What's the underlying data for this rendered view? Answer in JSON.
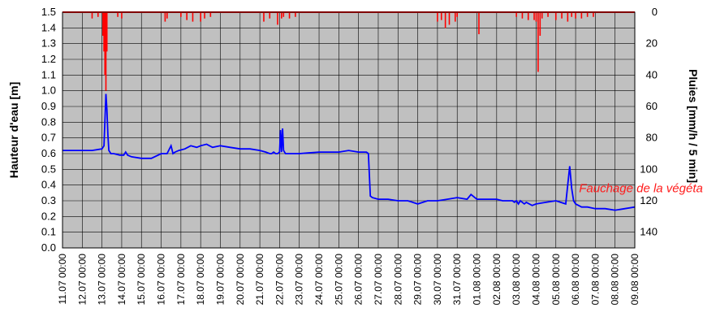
{
  "chart_data": {
    "type": "line",
    "title": "",
    "ylabel": "Hauteur d'eau [m]",
    "y2label": "Pluies [mm/h / 5 min]",
    "ylim": [
      0,
      1.5
    ],
    "y2lim": [
      0,
      150
    ],
    "y2_inverted": true,
    "y_ticks": [
      "0.0",
      "0.1",
      "0.2",
      "0.3",
      "0.4",
      "0.5",
      "0.6",
      "0.7",
      "0.8",
      "0.9",
      "1.0",
      "1.1",
      "1.2",
      "1.3",
      "1.4",
      "1.5"
    ],
    "y2_ticks": [
      "0",
      "20",
      "40",
      "60",
      "80",
      "100",
      "120",
      "140"
    ],
    "x_ticks": [
      "11.07 00:00",
      "12.07 00:00",
      "13.07 00:00",
      "14.07 00:00",
      "15.07 00:00",
      "16.07 00:00",
      "17.07 00:00",
      "18.07 00:00",
      "19.07 00:00",
      "20.07 00:00",
      "21.07 00:00",
      "22.07 00:00",
      "23.07 00:00",
      "24.07 00:00",
      "25.07 00:00",
      "26.07 00:00",
      "27.07 00:00",
      "28.07 00:00",
      "29.07 00:00",
      "30.07 00:00",
      "31.07 00:00",
      "01.08 00:00",
      "02.08 00:00",
      "03.08 00:00",
      "04.08 00:00",
      "05.08 00:00",
      "06.08 00:00",
      "07.08 00:00",
      "08.08 00:00",
      "09.08 00:00"
    ],
    "grid": true,
    "background": "#c0c0c0",
    "annotation": {
      "text": "Fauchage de la végétation",
      "x": 26.5,
      "y": 0.38
    },
    "colors": {
      "water": "#0000ff",
      "rain": "#ff0000"
    },
    "series": [
      {
        "axis": "left",
        "x": [
          0,
          1.5,
          2.0,
          2.1,
          2.2,
          2.25,
          2.3,
          2.35,
          2.45,
          2.6,
          2.9,
          3.1,
          3.2,
          3.3,
          3.5,
          4.0,
          4.5,
          5.0,
          5.3,
          5.5,
          5.6,
          5.7,
          5.9,
          6.2,
          6.5,
          6.8,
          7.0,
          7.3,
          7.6,
          8.0,
          8.5,
          9.0,
          9.5,
          10.0,
          10.3,
          10.5,
          10.6,
          10.7,
          10.8,
          10.9,
          11.0,
          11.05,
          11.1,
          11.15,
          11.2,
          11.3,
          11.5,
          12.0,
          13.0,
          14.0,
          14.5,
          15.0,
          15.4,
          15.5,
          15.6,
          15.7,
          16.0,
          16.5,
          17.0,
          17.5,
          18.0,
          18.5,
          19.0,
          19.5,
          20.0,
          20.5,
          20.7,
          21.0,
          21.5,
          22.0,
          22.3,
          22.5,
          22.8,
          22.9,
          23.0,
          23.1,
          23.2,
          23.3,
          23.4,
          23.5,
          23.8,
          24.0,
          24.5,
          25.0,
          25.5,
          25.7,
          25.8,
          25.9,
          26.0,
          26.3,
          26.6,
          27.0,
          27.5,
          28.0,
          28.5,
          29.0
        ],
        "values": [
          0.62,
          0.62,
          0.63,
          0.65,
          0.98,
          0.88,
          0.72,
          0.62,
          0.6,
          0.6,
          0.59,
          0.59,
          0.61,
          0.59,
          0.58,
          0.57,
          0.57,
          0.6,
          0.6,
          0.65,
          0.6,
          0.61,
          0.62,
          0.63,
          0.65,
          0.64,
          0.65,
          0.66,
          0.64,
          0.65,
          0.64,
          0.63,
          0.63,
          0.62,
          0.61,
          0.6,
          0.6,
          0.61,
          0.6,
          0.6,
          0.61,
          0.75,
          0.61,
          0.76,
          0.62,
          0.6,
          0.6,
          0.6,
          0.61,
          0.61,
          0.62,
          0.61,
          0.61,
          0.6,
          0.33,
          0.32,
          0.31,
          0.31,
          0.3,
          0.3,
          0.28,
          0.3,
          0.3,
          0.31,
          0.32,
          0.31,
          0.34,
          0.31,
          0.31,
          0.31,
          0.3,
          0.3,
          0.3,
          0.29,
          0.3,
          0.28,
          0.3,
          0.29,
          0.28,
          0.29,
          0.27,
          0.28,
          0.29,
          0.3,
          0.28,
          0.52,
          0.38,
          0.3,
          0.28,
          0.26,
          0.26,
          0.25,
          0.25,
          0.24,
          0.25,
          0.26
        ]
      },
      {
        "axis": "right",
        "type": "bar",
        "x": [
          2.05,
          2.1,
          2.15,
          2.2,
          2.25,
          1.5,
          1.8,
          2.8,
          3.0,
          5.2,
          5.3,
          6.0,
          6.3,
          6.6,
          7.0,
          7.2,
          7.5,
          10.2,
          10.5,
          10.9,
          11.1,
          11.2,
          11.5,
          11.8,
          19.0,
          19.2,
          19.4,
          19.6,
          19.9,
          20.0,
          21.1,
          23.0,
          23.3,
          23.6,
          23.9,
          24.0,
          24.1,
          24.2,
          24.3,
          24.6,
          25.0,
          25.3,
          25.6,
          25.8,
          26.0,
          26.3,
          26.6,
          26.9
        ],
        "values": [
          15,
          25,
          40,
          50,
          25,
          4,
          3,
          3,
          4,
          6,
          4,
          3,
          5,
          6,
          6,
          4,
          3,
          6,
          4,
          8,
          4,
          3,
          4,
          3,
          6,
          5,
          10,
          8,
          6,
          3,
          14,
          3,
          4,
          5,
          5,
          6,
          38,
          15,
          4,
          3,
          5,
          4,
          6,
          3,
          4,
          4,
          3,
          3
        ]
      }
    ]
  }
}
